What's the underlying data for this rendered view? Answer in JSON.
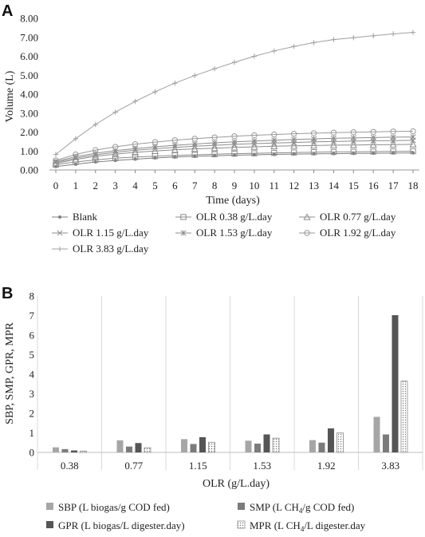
{
  "chart_data": [
    {
      "panel": "A",
      "type": "line",
      "xlabel": "Time (days)",
      "ylabel": "Volume (L)",
      "xlim": [
        0,
        18
      ],
      "ylim": [
        0,
        8
      ],
      "x_ticks": [
        "0",
        "1",
        "2",
        "3",
        "4",
        "5",
        "6",
        "7",
        "8",
        "9",
        "10",
        "11",
        "12",
        "13",
        "14",
        "15",
        "16",
        "17",
        "18"
      ],
      "y_ticks": [
        "0.00",
        "1.00",
        "2.00",
        "3.00",
        "4.00",
        "5.00",
        "6.00",
        "7.00",
        "8.00"
      ],
      "grid": false,
      "legend_position": "bottom",
      "x": [
        0,
        1,
        2,
        3,
        4,
        5,
        6,
        7,
        8,
        9,
        10,
        11,
        12,
        13,
        14,
        15,
        16,
        17,
        18
      ],
      "series": [
        {
          "name": "Blank",
          "marker": "dot",
          "color": "#7f7f7f",
          "values": [
            0.18,
            0.3,
            0.42,
            0.5,
            0.57,
            0.63,
            0.68,
            0.72,
            0.75,
            0.78,
            0.8,
            0.82,
            0.84,
            0.85,
            0.86,
            0.87,
            0.88,
            0.89,
            0.9
          ]
        },
        {
          "name": "OLR 0.38 g/L.day",
          "marker": "square",
          "color": "#8c8c8c",
          "values": [
            0.28,
            0.42,
            0.53,
            0.62,
            0.68,
            0.73,
            0.77,
            0.8,
            0.83,
            0.86,
            0.88,
            0.9,
            0.92,
            0.94,
            0.95,
            0.96,
            0.97,
            0.98,
            0.99
          ]
        },
        {
          "name": "OLR 0.77 g/L.day",
          "marker": "triangle",
          "color": "#8c8c8c",
          "values": [
            0.35,
            0.55,
            0.72,
            0.84,
            0.93,
            1.0,
            1.06,
            1.11,
            1.15,
            1.19,
            1.22,
            1.25,
            1.27,
            1.29,
            1.31,
            1.32,
            1.33,
            1.34,
            1.35
          ]
        },
        {
          "name": "OLR 1.15 g/L.day",
          "marker": "x",
          "color": "#8c8c8c",
          "values": [
            0.4,
            0.62,
            0.8,
            0.93,
            1.04,
            1.12,
            1.19,
            1.25,
            1.3,
            1.35,
            1.39,
            1.42,
            1.45,
            1.48,
            1.5,
            1.52,
            1.54,
            1.55,
            1.56
          ]
        },
        {
          "name": "OLR 1.53 g/L.day",
          "marker": "star",
          "color": "#8c8c8c",
          "values": [
            0.45,
            0.7,
            0.88,
            1.02,
            1.13,
            1.22,
            1.3,
            1.37,
            1.43,
            1.48,
            1.53,
            1.57,
            1.61,
            1.64,
            1.67,
            1.69,
            1.71,
            1.73,
            1.74
          ]
        },
        {
          "name": "OLR 1.92 g/L.day",
          "marker": "circle",
          "color": "#9a9a9a",
          "values": [
            0.5,
            0.82,
            1.05,
            1.22,
            1.36,
            1.47,
            1.57,
            1.65,
            1.72,
            1.78,
            1.83,
            1.87,
            1.91,
            1.94,
            1.97,
            1.99,
            2.01,
            2.03,
            2.04
          ]
        },
        {
          "name": "OLR 3.83 g/L.day",
          "marker": "plus",
          "color": "#a0a0a0",
          "values": [
            0.82,
            1.65,
            2.4,
            3.05,
            3.62,
            4.12,
            4.58,
            4.98,
            5.34,
            5.68,
            6.0,
            6.28,
            6.52,
            6.72,
            6.88,
            6.98,
            7.08,
            7.18,
            7.26
          ]
        }
      ]
    },
    {
      "panel": "B",
      "type": "bar",
      "xlabel": "OLR (g/L.day)",
      "ylabel": "SBP, SMP, GPR, MPR",
      "ylim": [
        0,
        8
      ],
      "y_ticks": [
        "0",
        "1",
        "2",
        "3",
        "4",
        "5",
        "6",
        "7",
        "8"
      ],
      "grid": false,
      "legend_position": "bottom",
      "categories": [
        "0.38",
        "0.77",
        "1.15",
        "1.53",
        "1.92",
        "3.83"
      ],
      "series": [
        {
          "name": "SBP (L biogas/g COD fed)",
          "name_parts": [
            "SBP (L biogas/g COD fed)"
          ],
          "fill": "solid",
          "color": "#a6a6a6",
          "values": [
            0.26,
            0.62,
            0.68,
            0.6,
            0.63,
            1.82
          ]
        },
        {
          "name": "SMP (L CH4/g COD fed)",
          "name_parts": [
            "SMP (L CH",
            "4",
            "/g COD fed)"
          ],
          "fill": "solid",
          "color": "#7b7b7b",
          "values": [
            0.17,
            0.3,
            0.43,
            0.45,
            0.5,
            0.92
          ]
        },
        {
          "name": "GPR (L biogas/L digester.day)",
          "name_parts": [
            "GPR (L biogas/L digester.day)"
          ],
          "fill": "solid",
          "color": "#555555",
          "values": [
            0.1,
            0.48,
            0.78,
            0.92,
            1.23,
            7.02
          ]
        },
        {
          "name": "MPR (L CH4/L digester.day",
          "name_parts": [
            "MPR (L CH",
            "4",
            "/L digester.day"
          ],
          "fill": "dotted",
          "color": "#8c8c8c",
          "values": [
            0.07,
            0.24,
            0.52,
            0.73,
            1.0,
            3.65
          ]
        }
      ]
    }
  ]
}
